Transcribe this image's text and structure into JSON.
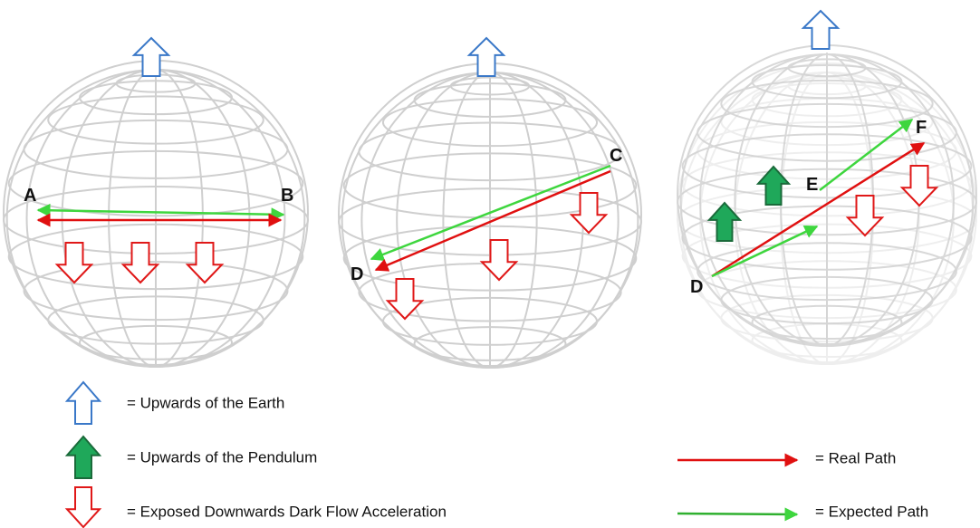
{
  "globes": [
    {
      "labels": [
        "A",
        "B"
      ]
    },
    {
      "labels": [
        "C",
        "D"
      ]
    },
    {
      "labels": [
        "D",
        "E",
        "F"
      ]
    }
  ],
  "legend": {
    "earth_up": "= Upwards of the Earth",
    "pendulum_up": "= Upwards of the Pendulum",
    "dark_flow": "= Exposed Downwards Dark Flow Acceleration",
    "real_path": "= Real Path",
    "expected_path": "= Expected Path"
  }
}
